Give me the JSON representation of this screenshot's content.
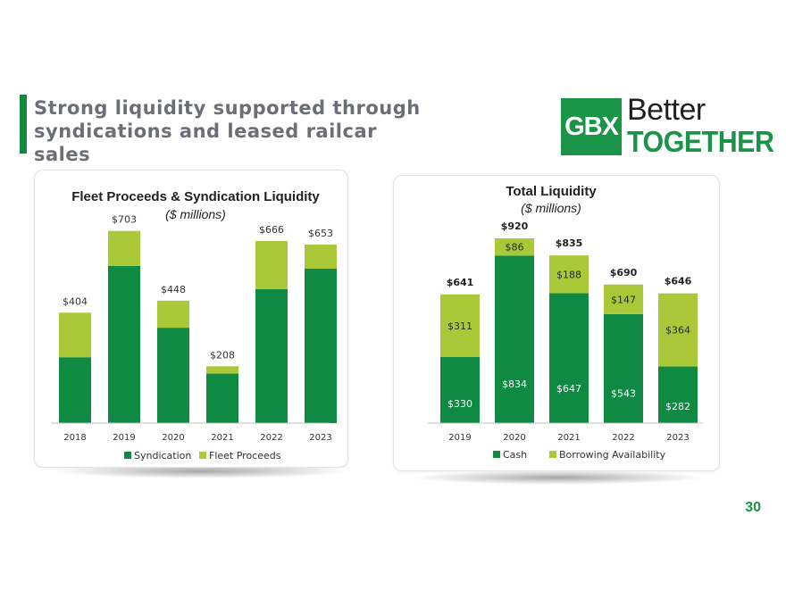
{
  "slide": {
    "title": "Strong liquidity supported through syndications and leased railcar sales",
    "page_number": "30",
    "logo": {
      "box_text": "GBX",
      "line1": "Better",
      "line2": "TOGETHER"
    }
  },
  "colors": {
    "dark_green": "#0f8a43",
    "light_green": "#a9c938",
    "brand_green": "#1a9446"
  },
  "chart_data": [
    {
      "type": "bar",
      "stacked": true,
      "title": "Fleet Proceeds & Syndication Liquidity",
      "subtitle": "($ millions)",
      "categories": [
        "2018",
        "2019",
        "2020",
        "2021",
        "2022",
        "2023"
      ],
      "series": [
        {
          "name": "Syndication",
          "color": "#0f8a43",
          "values": [
            241,
            575,
            349,
            181,
            490,
            565
          ]
        },
        {
          "name": "Fleet Proceeds",
          "color": "#a9c938",
          "values": [
            163,
            128,
            99,
            27,
            176,
            88
          ]
        }
      ],
      "totals": [
        "$404",
        "$703",
        "$448",
        "$208",
        "$666",
        "$653"
      ],
      "ylim": [
        0,
        800
      ],
      "legend": "bottom"
    },
    {
      "type": "bar",
      "stacked": true,
      "title": "Total Liquidity",
      "subtitle": "($ millions)",
      "categories": [
        "2019",
        "2020",
        "2021",
        "2022",
        "2023"
      ],
      "series": [
        {
          "name": "Cash",
          "color": "#0f8a43",
          "values": [
            330,
            834,
            647,
            543,
            282
          ],
          "labels": [
            "$330",
            "$834",
            "$647",
            "$543",
            "$282"
          ]
        },
        {
          "name": "Borrowing Availability",
          "color": "#a9c938",
          "values": [
            311,
            86,
            188,
            147,
            364
          ],
          "labels": [
            "$311",
            "$86",
            "$188",
            "$147",
            "$364"
          ]
        }
      ],
      "totals": [
        "$641",
        "$920",
        "$835",
        "$690",
        "$646"
      ],
      "ylim": [
        0,
        1000
      ],
      "legend": "bottom"
    }
  ]
}
